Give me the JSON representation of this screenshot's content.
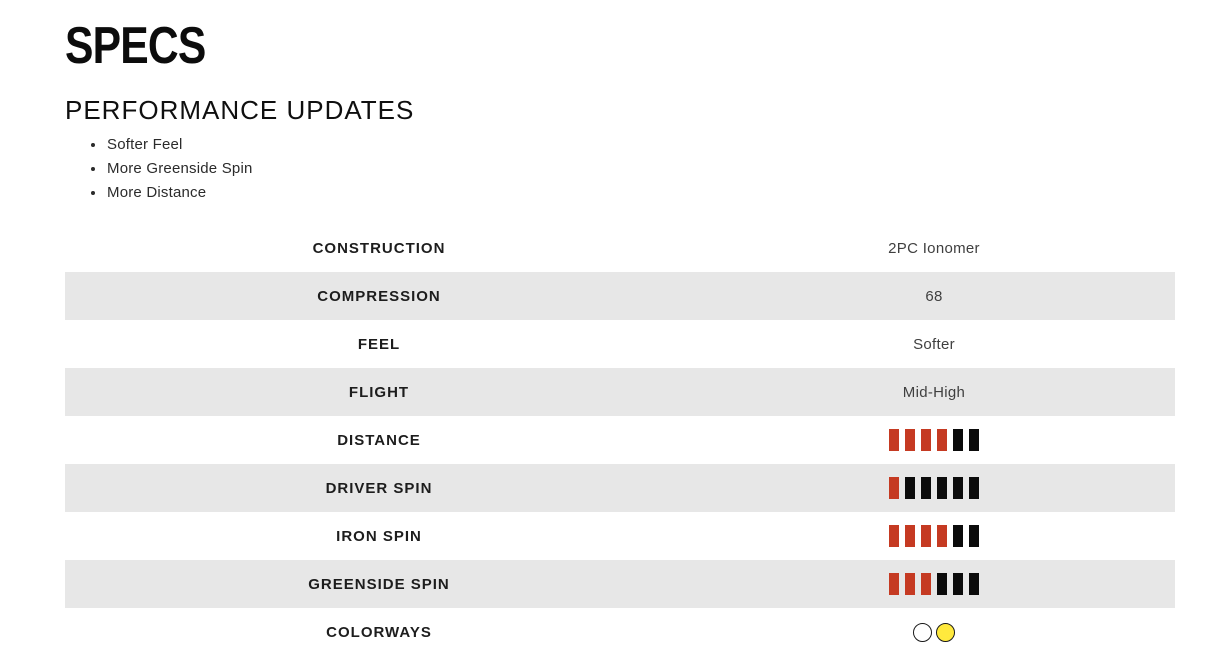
{
  "page": {
    "title": "SPECS",
    "section_heading": "PERFORMANCE UPDATES",
    "bullets": [
      "Softer Feel",
      "More Greenside Spin",
      "More Distance"
    ]
  },
  "specs_table": {
    "rows": [
      {
        "label": "CONSTRUCTION",
        "type": "text",
        "value": "2PC Ionomer"
      },
      {
        "label": "COMPRESSION",
        "type": "text",
        "value": "68"
      },
      {
        "label": "FEEL",
        "type": "text",
        "value": "Softer"
      },
      {
        "label": "FLIGHT",
        "type": "text",
        "value": "Mid-High"
      },
      {
        "label": "DISTANCE",
        "type": "rating",
        "rating": 4,
        "max": 6
      },
      {
        "label": "DRIVER SPIN",
        "type": "rating",
        "rating": 1,
        "max": 6
      },
      {
        "label": "IRON SPIN",
        "type": "rating",
        "rating": 4,
        "max": 6
      },
      {
        "label": "GREENSIDE SPIN",
        "type": "rating",
        "rating": 3,
        "max": 6
      },
      {
        "label": "COLORWAYS",
        "type": "colorways",
        "colors": [
          "#ffffff",
          "#ffe93d"
        ],
        "color_names": [
          "white",
          "yellow"
        ]
      }
    ],
    "colors": {
      "filled_bar": "#c53a22",
      "empty_bar": "#0b0b0b",
      "row_alt_bg": "#e7e7e7"
    }
  }
}
